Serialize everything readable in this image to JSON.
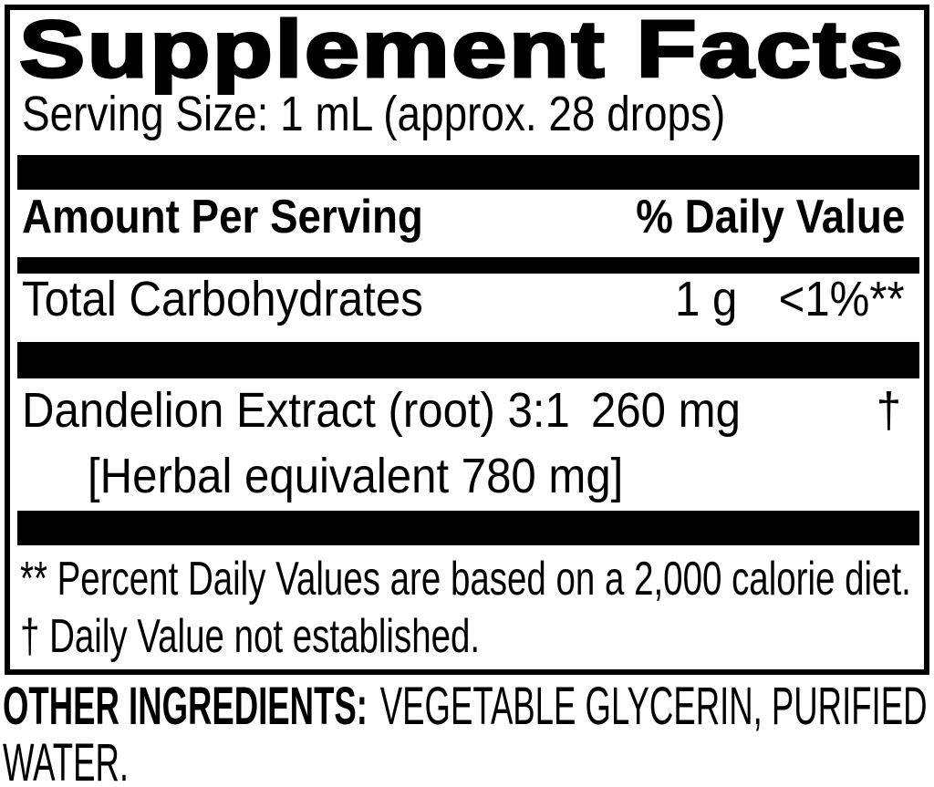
{
  "panel": {
    "title": "Supplement Facts",
    "serving_size": "Serving Size: 1 mL (approx. 28 drops)",
    "column_headers": {
      "amount": "Amount Per Serving",
      "daily_value": "% Daily Value"
    },
    "rows": [
      {
        "name": "Total Carbohydrates",
        "amount": "1 g",
        "daily_value": "<1%**"
      },
      {
        "name": "Dandelion Extract (root) 3:1",
        "amount": "260 mg",
        "daily_value": "†",
        "detail": "[Herbal equivalent 780 mg]"
      }
    ],
    "footnotes": [
      "** Percent Daily Values are based on a 2,000 calorie diet.",
      "† Daily Value not established."
    ]
  },
  "other_ingredients": {
    "label": "OTHER INGREDIENTS:",
    "text_line1": "VEGETABLE GLYCERIN, PURIFIED",
    "text_line2": "WATER."
  },
  "colors": {
    "ink": "#000000",
    "paper": "#ffffff"
  }
}
